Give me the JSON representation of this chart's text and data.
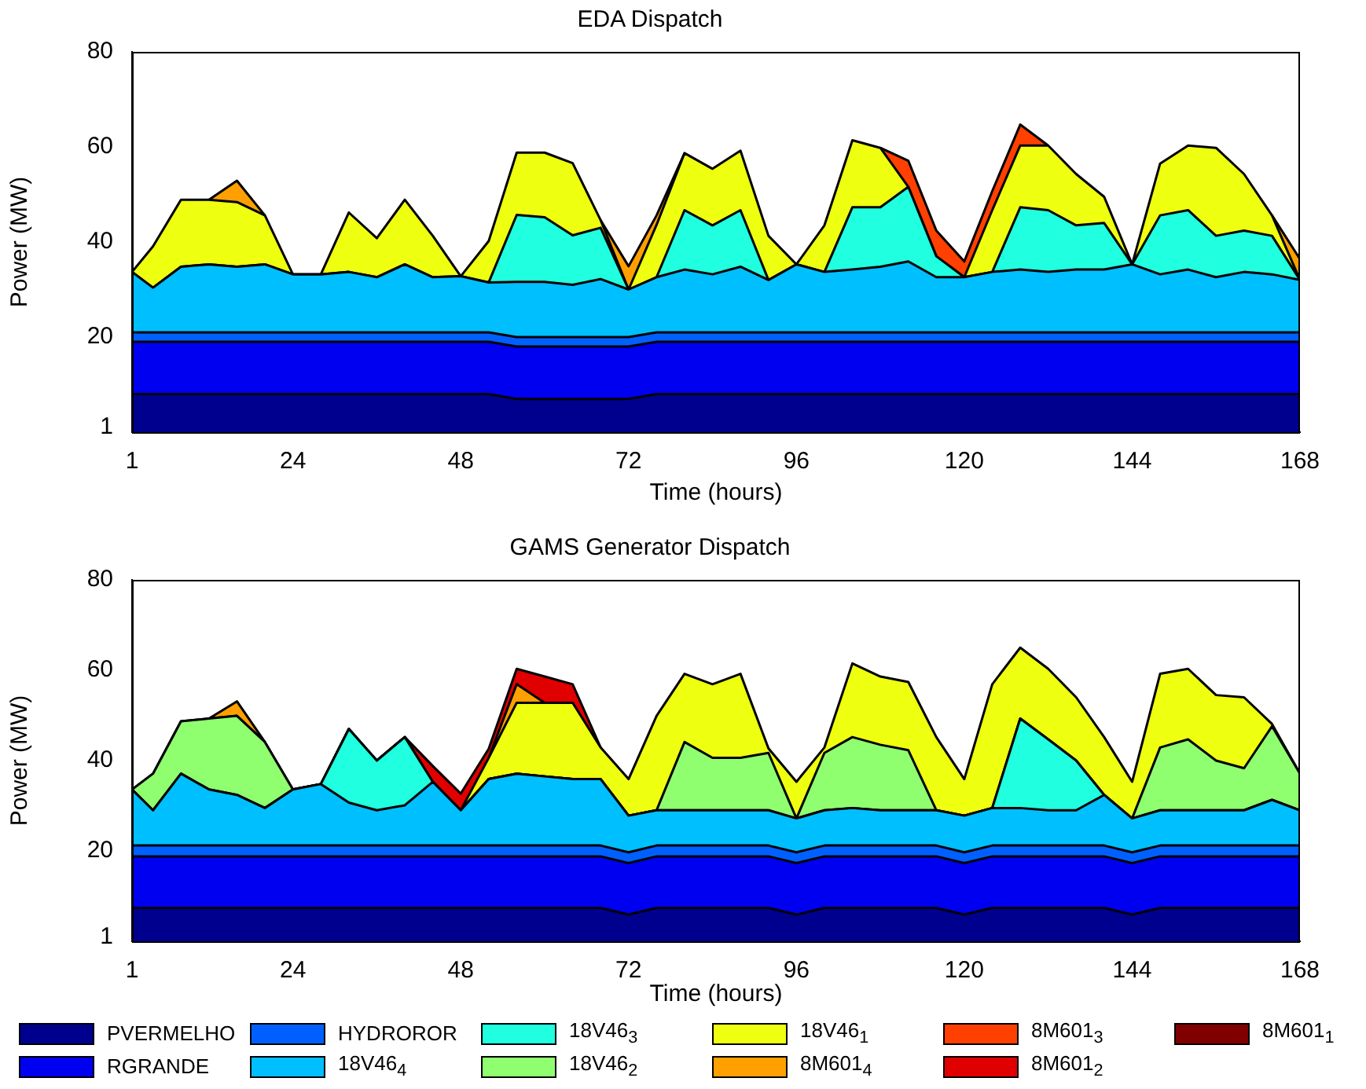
{
  "chart_data": [
    {
      "type": "area",
      "title": "EDA Dispatch",
      "xlabel": "Time (hours)",
      "ylabel": "Power (MW)",
      "stacked": true,
      "grid": false,
      "legend": false,
      "xlim": [
        1,
        168
      ],
      "xticks": [
        1,
        24,
        48,
        72,
        96,
        120,
        144,
        168
      ],
      "ylim": [
        0,
        80
      ],
      "yticks": [
        1,
        20,
        40,
        60,
        80
      ],
      "x": [
        1,
        4,
        8,
        12,
        16,
        20,
        24,
        28,
        32,
        36,
        40,
        44,
        48,
        52,
        56,
        60,
        64,
        68,
        72,
        76,
        80,
        84,
        88,
        92,
        96,
        100,
        104,
        108,
        112,
        116,
        120,
        124,
        128,
        132,
        136,
        140,
        144,
        148,
        152,
        156,
        160,
        164,
        168
      ],
      "series": [
        {
          "color": "#00008f",
          "values": [
            8,
            8,
            8,
            8,
            8,
            8,
            8,
            8,
            8,
            8,
            8,
            8,
            8,
            8,
            7,
            7,
            7,
            7,
            7,
            8,
            8,
            8,
            8,
            8,
            8,
            8,
            8,
            8,
            8,
            8,
            8,
            8,
            8,
            8,
            8,
            8,
            8,
            8,
            8,
            8,
            8,
            8,
            8
          ]
        },
        {
          "color": "#0000f0",
          "values": [
            11,
            11,
            11,
            11,
            11,
            11,
            11,
            11,
            11,
            11,
            11,
            11,
            11,
            11,
            11,
            11,
            11,
            11,
            11,
            11,
            11,
            11,
            11,
            11,
            11,
            11,
            11,
            11,
            11,
            11,
            11,
            11,
            11,
            11,
            11,
            11,
            11,
            11,
            11,
            11,
            11,
            11,
            11
          ]
        },
        {
          "color": "#0060ff",
          "values": [
            2,
            2,
            2,
            2,
            2,
            2,
            2,
            2,
            2,
            2,
            2,
            2,
            2,
            2,
            2,
            2,
            2,
            2,
            2,
            2,
            2,
            2,
            2,
            2,
            2,
            2,
            2,
            2,
            2,
            2,
            2,
            2,
            2,
            2,
            2,
            2,
            2,
            2,
            2,
            2,
            2,
            2,
            2
          ]
        },
        {
          "color": "#00bfff",
          "values": [
            12.7,
            9.4,
            13.8,
            14.3,
            13.8,
            14.3,
            12.2,
            12.2,
            12.7,
            11.6,
            14.3,
            11.6,
            11.8,
            10.5,
            11.6,
            11.6,
            11,
            12.2,
            10,
            11.6,
            13.2,
            12.2,
            13.8,
            11,
            14.3,
            12.7,
            13.2,
            13.8,
            14.9,
            11.6,
            11.6,
            12.7,
            13.2,
            12.7,
            13.2,
            13.2,
            14.3,
            12.2,
            13.2,
            11.6,
            12.7,
            12.2,
            11
          ]
        },
        {
          "color": "#20ffdf",
          "values": [
            0,
            0,
            0,
            0,
            0,
            0,
            0,
            0,
            0,
            0,
            0,
            0,
            0,
            0,
            14.1,
            13.6,
            10.4,
            10.8,
            0,
            0,
            12.5,
            10.3,
            11.9,
            0,
            0,
            0,
            13.1,
            12.5,
            15.7,
            4.4,
            0,
            0,
            13.1,
            13,
            9.3,
            9.8,
            0,
            12.4,
            12.5,
            8.7,
            8.7,
            8.1,
            0
          ]
        },
        {
          "color": "#efff10",
          "values": [
            0,
            8.7,
            14.1,
            13.6,
            13.6,
            10.3,
            0,
            0,
            12.5,
            8.2,
            13.6,
            8.7,
            0,
            8.7,
            13.1,
            13.6,
            15.2,
            1.6,
            0,
            11,
            12,
            11.9,
            12.5,
            9.3,
            0,
            9.8,
            14.1,
            12.5,
            0,
            0,
            0,
            13,
            13,
            13.6,
            10.8,
            5.5,
            0,
            10.9,
            13.6,
            18.5,
            11.9,
            4.3,
            0
          ]
        },
        {
          "color": "#ffa000",
          "values": [
            null,
            null,
            null,
            0,
            4.5,
            0,
            null,
            null,
            null,
            null,
            null,
            null,
            null,
            null,
            null,
            null,
            null,
            0,
            4.9,
            2,
            0,
            null,
            null,
            null,
            null,
            null,
            null,
            null,
            null,
            null,
            null,
            null,
            null,
            null,
            null,
            null,
            null,
            null,
            null,
            null,
            null,
            0,
            4.4
          ]
        },
        {
          "color": "#ff4000",
          "values": [
            null,
            null,
            null,
            null,
            null,
            null,
            null,
            null,
            null,
            null,
            null,
            null,
            null,
            null,
            null,
            null,
            null,
            null,
            null,
            null,
            null,
            null,
            null,
            null,
            null,
            null,
            null,
            0,
            5.5,
            5.4,
            3.3,
            4,
            4.4,
            0,
            null,
            null,
            null,
            null,
            null,
            null,
            null,
            null,
            null
          ]
        }
      ]
    },
    {
      "type": "area",
      "title": "GAMS Generator Dispatch",
      "xlabel": "Time (hours)",
      "ylabel": "Power (MW)",
      "stacked": true,
      "grid": false,
      "legend": "bottom",
      "xlim": [
        1,
        168
      ],
      "xticks": [
        1,
        24,
        48,
        72,
        96,
        120,
        144,
        168
      ],
      "ylim": [
        0,
        80
      ],
      "yticks": [
        1,
        20,
        40,
        60,
        80
      ],
      "x": [
        1,
        4,
        8,
        12,
        16,
        20,
        24,
        28,
        32,
        36,
        40,
        44,
        48,
        52,
        56,
        60,
        64,
        68,
        72,
        76,
        80,
        84,
        88,
        92,
        96,
        100,
        104,
        108,
        112,
        116,
        120,
        124,
        128,
        132,
        136,
        140,
        144,
        148,
        152,
        156,
        160,
        164,
        168
      ],
      "series": [
        {
          "name": "PVERMELHO",
          "color": "#00008f",
          "values": [
            7.4,
            7.4,
            7.4,
            7.4,
            7.4,
            7.4,
            7.4,
            7.4,
            7.4,
            7.4,
            7.4,
            7.4,
            7.4,
            7.4,
            7.4,
            7.4,
            7.4,
            7.4,
            5.9,
            7.4,
            7.4,
            7.4,
            7.4,
            7.4,
            5.9,
            7.4,
            7.4,
            7.4,
            7.4,
            7.4,
            5.9,
            7.4,
            7.4,
            7.4,
            7.4,
            7.4,
            5.9,
            7.4,
            7.4,
            7.4,
            7.4,
            7.4,
            7.4
          ]
        },
        {
          "name": "RGRANDE",
          "color": "#0000f0",
          "values": [
            11.4,
            11.4,
            11.4,
            11.4,
            11.4,
            11.4,
            11.4,
            11.4,
            11.4,
            11.4,
            11.4,
            11.4,
            11.4,
            11.4,
            11.4,
            11.4,
            11.4,
            11.4,
            11.4,
            11.4,
            11.4,
            11.4,
            11.4,
            11.4,
            11.4,
            11.4,
            11.4,
            11.4,
            11.4,
            11.4,
            11.4,
            11.4,
            11.4,
            11.4,
            11.4,
            11.4,
            11.4,
            11.4,
            11.4,
            11.4,
            11.4,
            11.4,
            11.4
          ]
        },
        {
          "name": "HYDROROR",
          "color": "#0060ff",
          "values": [
            2.4,
            2.4,
            2.4,
            2.4,
            2.4,
            2.4,
            2.4,
            2.4,
            2.4,
            2.4,
            2.4,
            2.4,
            2.4,
            2.4,
            2.4,
            2.4,
            2.4,
            2.4,
            2.4,
            2.4,
            2.4,
            2.4,
            2.4,
            2.4,
            2.4,
            2.4,
            2.4,
            2.4,
            2.4,
            2.4,
            2.4,
            2.4,
            2.4,
            2.4,
            2.4,
            2.4,
            2.4,
            2.4,
            2.4,
            2.4,
            2.4,
            2.4,
            2.4
          ]
        },
        {
          "name": "18V46$_{4}$",
          "color": "#00bfff",
          "values": [
            12.4,
            7.8,
            15.9,
            12.4,
            11.2,
            8.3,
            12.4,
            13.6,
            9.5,
            7.8,
            8.9,
            14.1,
            7.8,
            14.7,
            15.9,
            15.3,
            14.7,
            14.7,
            8.1,
            7.8,
            7.8,
            7.8,
            7.8,
            7.8,
            7.5,
            7.8,
            8.3,
            7.8,
            7.8,
            7.8,
            8.1,
            8.3,
            8.3,
            7.8,
            7.8,
            11.2,
            7.5,
            7.8,
            7.8,
            7.8,
            7.8,
            10.1,
            7.8
          ]
        },
        {
          "name": "18V46$_{3}$",
          "color": "#20ffdf",
          "values": [
            0,
            0,
            0,
            0,
            0,
            0,
            0,
            0,
            16.3,
            11,
            15.1,
            0,
            0,
            0,
            0,
            0,
            0,
            0,
            0,
            0,
            0,
            0,
            0,
            0,
            0,
            0,
            0,
            0,
            0,
            0,
            0,
            0,
            19.8,
            15.7,
            11,
            0,
            0,
            0,
            0,
            0,
            0,
            0,
            0
          ]
        },
        {
          "name": "18V46$_{2}$",
          "color": "#8fff70",
          "values": [
            0,
            8.1,
            11.6,
            15.7,
            17.5,
            14.6,
            0,
            0,
            0,
            0,
            0,
            0,
            0,
            0,
            0,
            0,
            0,
            0,
            0,
            0,
            15.1,
            11.6,
            11.6,
            12.7,
            0,
            12.7,
            15.7,
            14.5,
            13.3,
            0,
            0,
            0,
            0,
            0,
            0,
            0,
            0,
            13.9,
            15.7,
            11,
            9.3,
            16.3,
            8.1
          ]
        },
        {
          "name": "18V46$_{1}$",
          "color": "#efff10",
          "values": [
            0,
            0,
            0,
            0,
            0,
            0,
            0,
            0,
            0,
            0,
            0,
            0,
            0,
            4.7,
            15.7,
            16.3,
            16.9,
            7,
            8.1,
            20.9,
            15.1,
            16.3,
            18.6,
            1,
            8.1,
            1.2,
            16.3,
            15.1,
            15.1,
            16.2,
            8.1,
            27.4,
            15.7,
            15.6,
            14,
            12.8,
            8.1,
            16.3,
            15.6,
            14.5,
            15.7,
            0.5,
            0
          ]
        },
        {
          "name": "8M601$_{4}$",
          "color": "#ffa000",
          "values": [
            null,
            null,
            null,
            0,
            3.2,
            0,
            null,
            null,
            null,
            null,
            null,
            null,
            null,
            0,
            4.1,
            0,
            null,
            null,
            null,
            null,
            null,
            null,
            null,
            null,
            null,
            null,
            null,
            null,
            null,
            null,
            null,
            null,
            null,
            null,
            null,
            null,
            null,
            null,
            null,
            null,
            null,
            null,
            null
          ]
        },
        {
          "name": "8M601$_{3}$",
          "color": "#ff4000",
          "values": [
            null,
            null,
            null,
            null,
            null,
            null,
            null,
            null,
            null,
            null,
            null,
            null,
            null,
            null,
            null,
            null,
            null,
            null,
            null,
            null,
            null,
            null,
            null,
            null,
            null,
            null,
            null,
            null,
            null,
            null,
            null,
            null,
            null,
            null,
            null,
            null,
            null,
            null,
            null,
            null,
            null,
            null,
            null
          ]
        },
        {
          "name": "8M601$_{2}$",
          "color": "#e00000",
          "values": [
            null,
            null,
            null,
            null,
            null,
            null,
            null,
            null,
            null,
            null,
            0,
            3.5,
            3.7,
            2,
            3.4,
            5.8,
            4.1,
            0,
            null,
            null,
            null,
            null,
            null,
            null,
            null,
            null,
            null,
            null,
            null,
            null,
            null,
            null,
            null,
            null,
            null,
            null,
            null,
            null,
            null,
            null,
            null,
            null,
            null
          ]
        },
        {
          "name": "8M601$_{1}$",
          "color": "#800000",
          "values": [
            null,
            null,
            null,
            null,
            null,
            null,
            null,
            null,
            null,
            null,
            null,
            null,
            null,
            null,
            null,
            null,
            null,
            null,
            null,
            null,
            null,
            null,
            null,
            null,
            null,
            null,
            null,
            null,
            null,
            null,
            null,
            null,
            null,
            null,
            null,
            null,
            null,
            null,
            null,
            null,
            null,
            null,
            null
          ]
        }
      ]
    }
  ]
}
